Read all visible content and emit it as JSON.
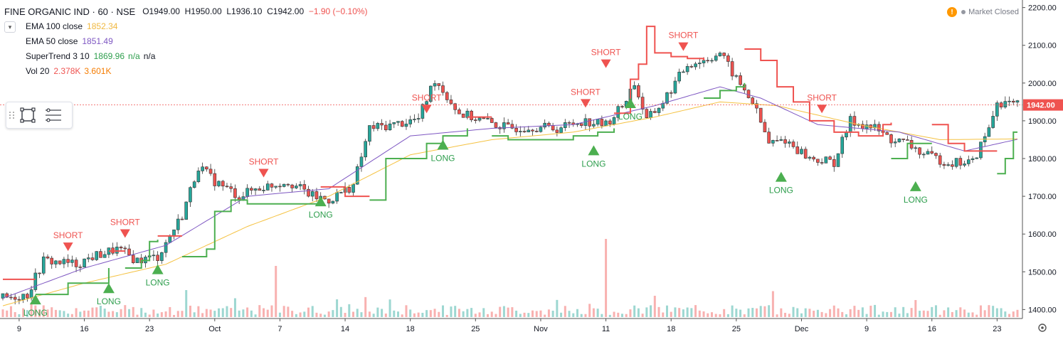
{
  "header": {
    "symbol": "FINE ORGANIC IND · 60 · NSE",
    "open_label": "O",
    "open": "1949.00",
    "high_label": "H",
    "high": "1950.00",
    "low_label": "L",
    "low": "1936.10",
    "close_label": "C",
    "close": "1942.00",
    "change": "−1.90 (−0.10%)",
    "market_status": "Market Closed"
  },
  "indicators": [
    {
      "name": "EMA 100 close",
      "values": [
        "1852.34"
      ],
      "colors": [
        "#f0b840"
      ]
    },
    {
      "name": "EMA 50 close",
      "values": [
        "1851.49"
      ],
      "colors": [
        "#7e57c2"
      ]
    },
    {
      "name": "SuperTrend 3 10",
      "values": [
        "1869.96",
        "n/a",
        "n/a"
      ],
      "colors": [
        "#2e9e4d",
        "#2e9e4d",
        "#131722"
      ]
    },
    {
      "name": "Vol 20",
      "values": [
        "2.378K",
        "3.601K"
      ],
      "colors": [
        "#ef5350",
        "#f57c00"
      ]
    }
  ],
  "chart_data": {
    "type": "candlestick",
    "y_axis": {
      "min": 1380,
      "max": 2220,
      "ticks": [
        "2200.00",
        "2100.00",
        "2000.00",
        "1900.00",
        "1800.00",
        "1700.00",
        "1600.00",
        "1500.00",
        "1400.00"
      ],
      "position": "right"
    },
    "last_price": "1942.00",
    "x_ticks": [
      "9",
      "16",
      "23",
      "Oct",
      "7",
      "14",
      "18",
      "25",
      "Nov",
      "11",
      "18",
      "25",
      "Dec",
      "9",
      "16",
      "23"
    ],
    "x_tick_index": [
      4,
      20,
      36,
      52,
      68,
      84,
      100,
      116,
      132,
      148,
      164,
      180,
      196,
      212,
      228,
      244
    ],
    "n_bars": 250,
    "close_anchors": [
      [
        0,
        1430
      ],
      [
        6,
        1440
      ],
      [
        10,
        1530
      ],
      [
        18,
        1520
      ],
      [
        22,
        1540
      ],
      [
        28,
        1560
      ],
      [
        33,
        1530
      ],
      [
        38,
        1540
      ],
      [
        44,
        1650
      ],
      [
        48,
        1780
      ],
      [
        52,
        1740
      ],
      [
        58,
        1700
      ],
      [
        62,
        1720
      ],
      [
        70,
        1740
      ],
      [
        76,
        1700
      ],
      [
        80,
        1690
      ],
      [
        86,
        1730
      ],
      [
        90,
        1880
      ],
      [
        96,
        1890
      ],
      [
        102,
        1905
      ],
      [
        106,
        2010
      ],
      [
        112,
        1920
      ],
      [
        118,
        1900
      ],
      [
        124,
        1880
      ],
      [
        130,
        1885
      ],
      [
        136,
        1880
      ],
      [
        142,
        1900
      ],
      [
        148,
        1890
      ],
      [
        152,
        1940
      ],
      [
        155,
        2000
      ],
      [
        158,
        1900
      ],
      [
        162,
        1950
      ],
      [
        168,
        2050
      ],
      [
        172,
        2060
      ],
      [
        176,
        2080
      ],
      [
        180,
        2010
      ],
      [
        184,
        1950
      ],
      [
        188,
        1840
      ],
      [
        192,
        1850
      ],
      [
        198,
        1800
      ],
      [
        204,
        1790
      ],
      [
        208,
        1900
      ],
      [
        214,
        1880
      ],
      [
        218,
        1850
      ],
      [
        222,
        1840
      ],
      [
        226,
        1810
      ],
      [
        232,
        1790
      ],
      [
        238,
        1790
      ],
      [
        242,
        1880
      ],
      [
        244,
        1950
      ],
      [
        249,
        1942
      ]
    ],
    "ema50_anchors": [
      [
        0,
        1430
      ],
      [
        20,
        1510
      ],
      [
        40,
        1570
      ],
      [
        60,
        1700
      ],
      [
        80,
        1720
      ],
      [
        100,
        1860
      ],
      [
        120,
        1880
      ],
      [
        140,
        1890
      ],
      [
        160,
        1940
      ],
      [
        176,
        1990
      ],
      [
        186,
        1960
      ],
      [
        200,
        1890
      ],
      [
        220,
        1870
      ],
      [
        236,
        1820
      ],
      [
        249,
        1851
      ]
    ],
    "ema100_anchors": [
      [
        0,
        1410
      ],
      [
        20,
        1470
      ],
      [
        40,
        1520
      ],
      [
        60,
        1620
      ],
      [
        80,
        1700
      ],
      [
        100,
        1810
      ],
      [
        120,
        1850
      ],
      [
        140,
        1870
      ],
      [
        160,
        1910
      ],
      [
        176,
        1950
      ],
      [
        190,
        1940
      ],
      [
        210,
        1890
      ],
      [
        230,
        1850
      ],
      [
        249,
        1852
      ]
    ],
    "supertrend": [
      {
        "dir": "short",
        "pts": [
          [
            0,
            1480
          ],
          [
            8,
            1480
          ]
        ]
      },
      {
        "dir": "long",
        "pts": [
          [
            8,
            1440
          ],
          [
            14,
            1440
          ],
          [
            16,
            1470
          ],
          [
            24,
            1470
          ],
          [
            26,
            1510
          ]
        ]
      },
      {
        "dir": "short",
        "pts": [
          [
            26,
            1555
          ],
          [
            30,
            1555
          ]
        ]
      },
      {
        "dir": "long",
        "pts": [
          [
            30,
            1510
          ],
          [
            34,
            1530
          ],
          [
            36,
            1580
          ],
          [
            38,
            1585
          ]
        ]
      },
      {
        "dir": "short",
        "pts": [
          [
            38,
            1595
          ],
          [
            44,
            1595
          ]
        ]
      },
      {
        "dir": "long",
        "pts": [
          [
            44,
            1540
          ],
          [
            50,
            1560
          ],
          [
            52,
            1660
          ],
          [
            56,
            1690
          ],
          [
            60,
            1680
          ],
          [
            76,
            1680
          ],
          [
            78,
            1690
          ]
        ]
      },
      {
        "dir": "short",
        "pts": [
          [
            78,
            1725
          ],
          [
            82,
            1725
          ],
          [
            84,
            1700
          ],
          [
            90,
            1700
          ]
        ]
      },
      {
        "dir": "long",
        "pts": [
          [
            90,
            1690
          ],
          [
            94,
            1800
          ],
          [
            100,
            1800
          ],
          [
            104,
            1840
          ],
          [
            108,
            1860
          ],
          [
            114,
            1880
          ]
        ]
      },
      {
        "dir": "short",
        "pts": [
          [
            114,
            1910
          ],
          [
            120,
            1910
          ]
        ]
      },
      {
        "dir": "long",
        "pts": [
          [
            120,
            1860
          ],
          [
            124,
            1850
          ],
          [
            136,
            1850
          ],
          [
            140,
            1860
          ],
          [
            146,
            1870
          ],
          [
            150,
            1880
          ]
        ]
      },
      {
        "dir": "short",
        "pts": [
          [
            150,
            1920
          ],
          [
            154,
            2010
          ],
          [
            156,
            2050
          ],
          [
            158,
            2150
          ],
          [
            160,
            2080
          ],
          [
            164,
            2070
          ],
          [
            168,
            2065
          ],
          [
            172,
            2060
          ]
        ]
      },
      {
        "dir": "long",
        "pts": [
          [
            172,
            1960
          ],
          [
            176,
            1980
          ],
          [
            180,
            1990
          ],
          [
            182,
            2000
          ]
        ]
      },
      {
        "dir": "short",
        "pts": [
          [
            182,
            2090
          ],
          [
            186,
            2060
          ],
          [
            190,
            1990
          ],
          [
            194,
            1950
          ],
          [
            198,
            1900
          ],
          [
            204,
            1870
          ],
          [
            210,
            1860
          ],
          [
            216,
            1890
          ],
          [
            218,
            1895
          ]
        ]
      },
      {
        "dir": "long",
        "pts": [
          [
            218,
            1800
          ],
          [
            222,
            1840
          ],
          [
            226,
            1840
          ],
          [
            228,
            1840
          ]
        ]
      },
      {
        "dir": "short",
        "pts": [
          [
            228,
            1890
          ],
          [
            232,
            1840
          ],
          [
            236,
            1820
          ],
          [
            244,
            1820
          ]
        ]
      },
      {
        "dir": "long",
        "pts": [
          [
            244,
            1760
          ],
          [
            246,
            1800
          ],
          [
            248,
            1870
          ],
          [
            249,
            1870
          ]
        ]
      }
    ],
    "signals": [
      {
        "type": "SHORT",
        "x": 16,
        "price": 1555
      },
      {
        "type": "LONG",
        "x": 8,
        "price": 1440
      },
      {
        "type": "LONG",
        "x": 26,
        "price": 1470
      },
      {
        "type": "SHORT",
        "x": 30,
        "price": 1590
      },
      {
        "type": "LONG",
        "x": 38,
        "price": 1520
      },
      {
        "type": "SHORT",
        "x": 64,
        "price": 1750
      },
      {
        "type": "LONG",
        "x": 78,
        "price": 1700
      },
      {
        "type": "SHORT",
        "x": 104,
        "price": 1920
      },
      {
        "type": "LONG",
        "x": 108,
        "price": 1850
      },
      {
        "type": "SHORT",
        "x": 143,
        "price": 1935
      },
      {
        "type": "LONG",
        "x": 145,
        "price": 1835
      },
      {
        "type": "SHORT",
        "x": 148,
        "price": 2040
      },
      {
        "type": "LONG",
        "x": 154,
        "price": 1960
      },
      {
        "type": "SHORT",
        "x": 167,
        "price": 2085
      },
      {
        "type": "LONG",
        "x": 191,
        "price": 1765
      },
      {
        "type": "SHORT",
        "x": 201,
        "price": 1920
      },
      {
        "type": "LONG",
        "x": 224,
        "price": 1740
      }
    ],
    "signal_labels": {
      "short": "SHORT",
      "long": "LONG"
    },
    "colors": {
      "up": "#26a69a",
      "down": "#ef5350",
      "ema50": "#7e57c2",
      "ema100": "#f5c242",
      "st_long": "#4caf50",
      "st_short": "#ef5350",
      "price_line": "#ef5350"
    },
    "grid": false
  },
  "icons": {
    "toolbox": [
      "rectangle-icon",
      "lines-icon"
    ]
  }
}
